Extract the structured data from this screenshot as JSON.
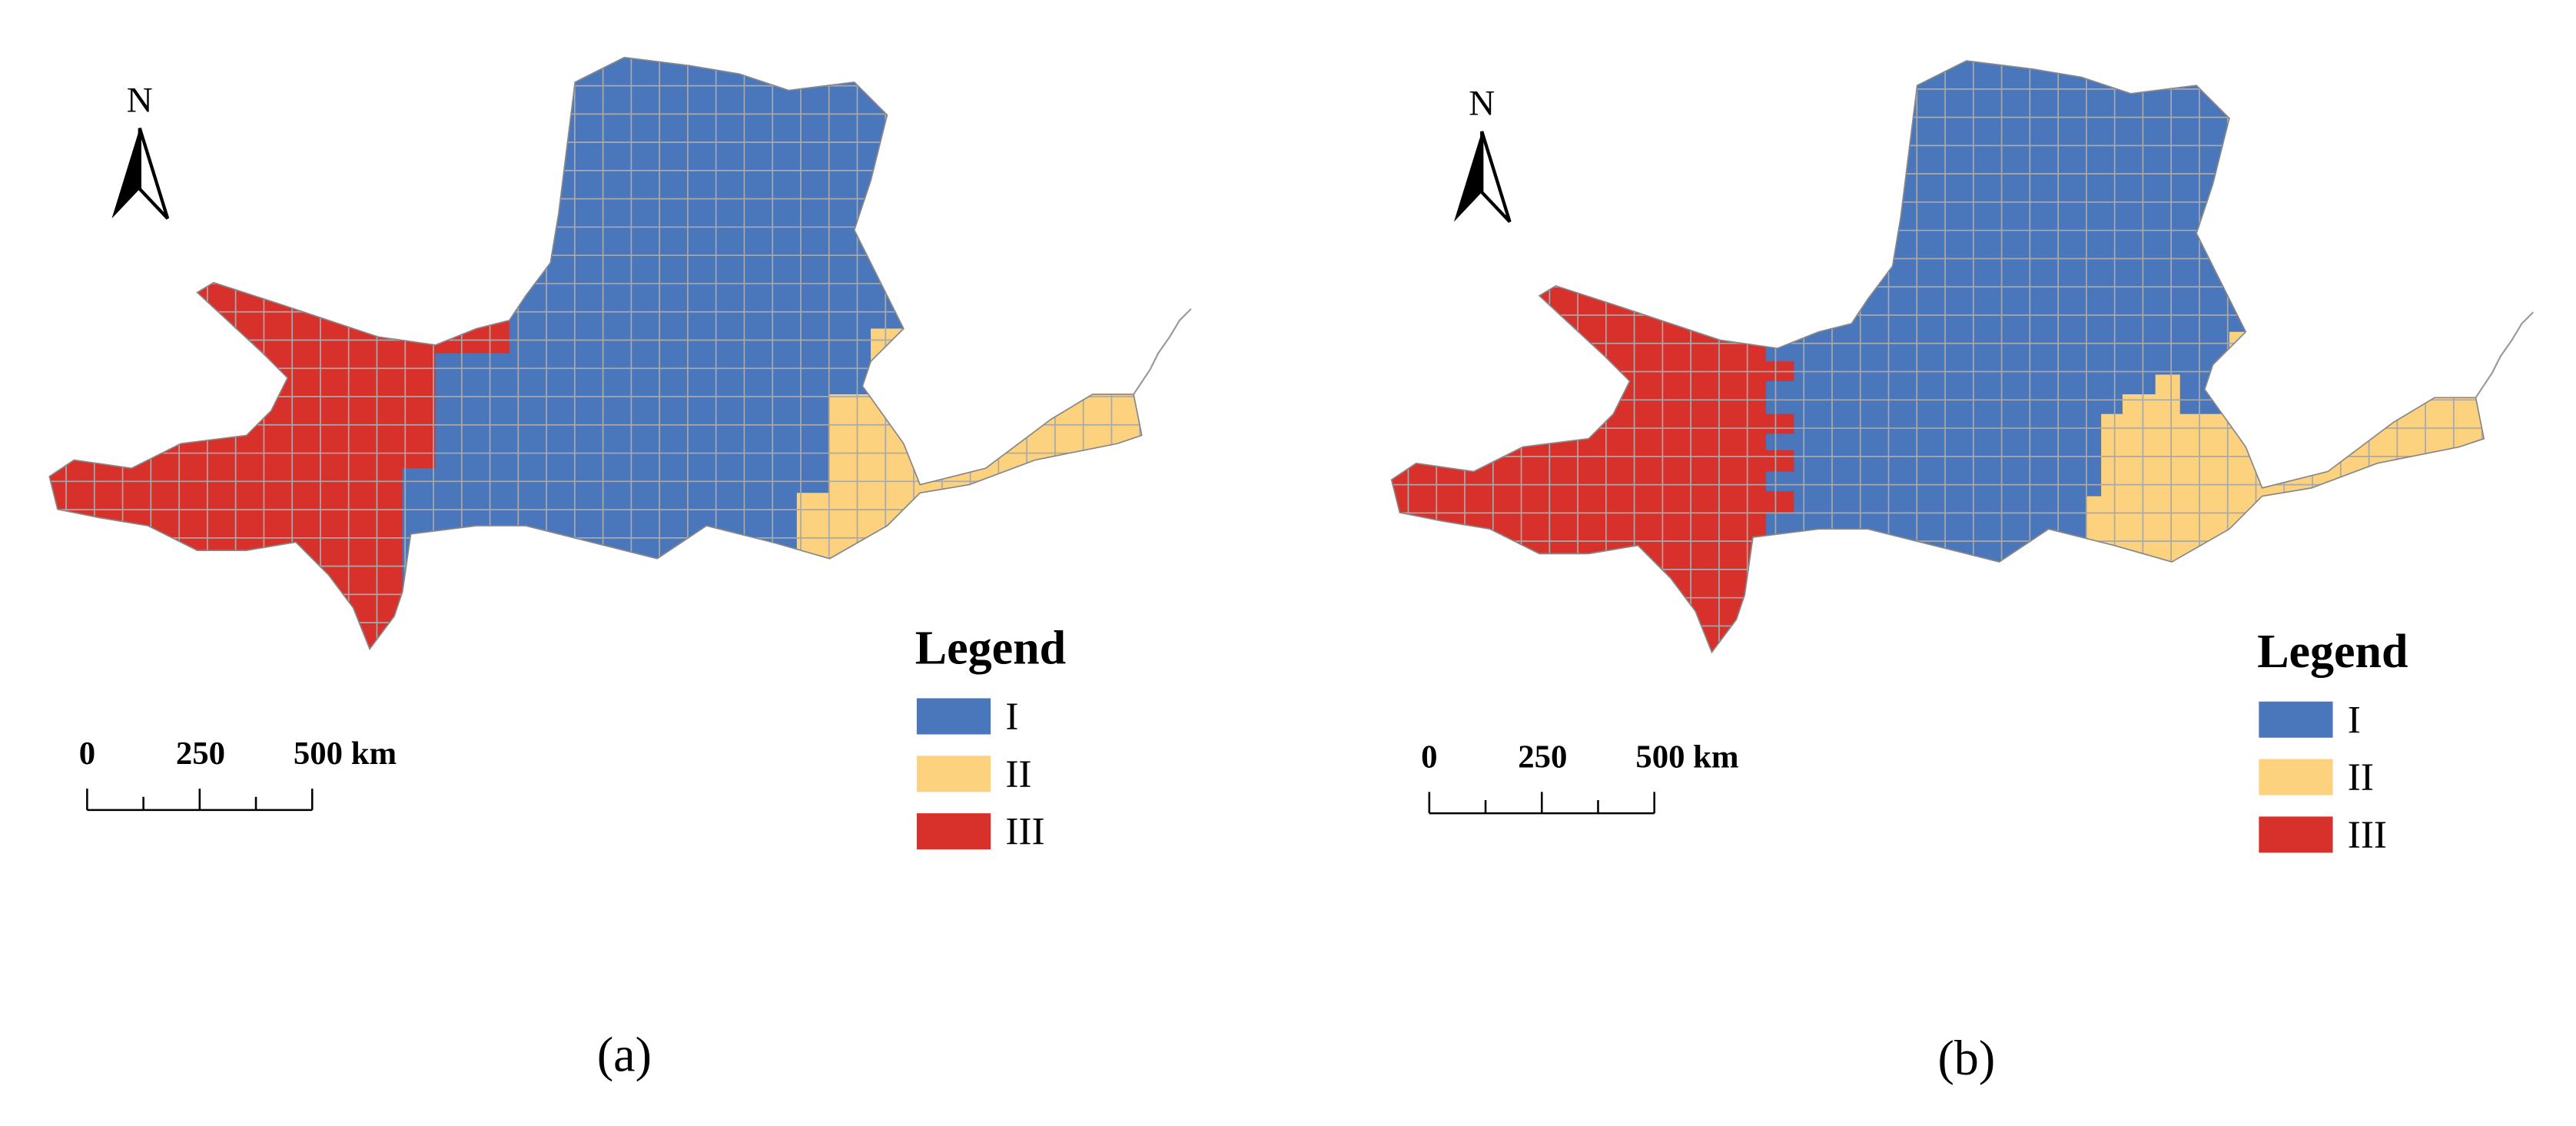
{
  "panels": [
    {
      "north": "N",
      "scale": {
        "labels": [
          "0",
          "250",
          "500 km"
        ]
      },
      "legend": {
        "title": "Legend",
        "items": [
          {
            "label": "I",
            "color": "#4a76bb"
          },
          {
            "label": "II",
            "color": "#fdd27f"
          },
          {
            "label": "III",
            "color": "#d8302a"
          }
        ]
      },
      "caption": "(a)"
    },
    {
      "north": "N",
      "scale": {
        "labels": [
          "0",
          "250",
          "500 km"
        ]
      },
      "legend": {
        "title": "Legend",
        "items": [
          {
            "label": "I",
            "color": "#4a76bb"
          },
          {
            "label": "II",
            "color": "#fdd27f"
          },
          {
            "label": "III",
            "color": "#d8302a"
          }
        ]
      },
      "caption": "(b)"
    }
  ]
}
